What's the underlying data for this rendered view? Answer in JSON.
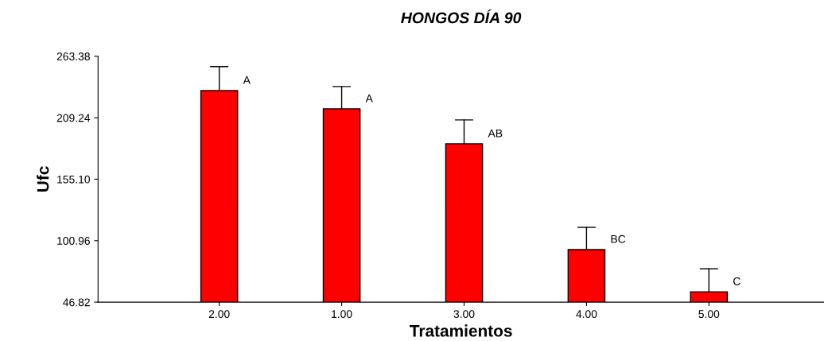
{
  "chart_data": {
    "type": "bar",
    "title": "HONGOS DÍA 90",
    "xlabel": "Tratamientos",
    "ylabel": "Ufc",
    "categories": [
      "2.00",
      "1.00",
      "3.00",
      "4.00",
      "5.00"
    ],
    "values": [
      233.2,
      217.1,
      186.3,
      93.1,
      55.9
    ],
    "errors": [
      [
        233.2,
        254.3
      ],
      [
        217.1,
        236.7
      ],
      [
        186.3,
        207.3
      ],
      [
        93.1,
        112.7
      ],
      [
        55.9,
        76.2
      ]
    ],
    "color": "#ff0000",
    "ylim": [
      46.82,
      263.38
    ],
    "yticks": [
      {
        "value": 46.82,
        "label": "46.82"
      },
      {
        "value": 100.96,
        "label": "100.96"
      },
      {
        "value": 155.1,
        "label": "155.10"
      },
      {
        "value": 209.24,
        "label": "209.24"
      },
      {
        "value": 263.38,
        "label": "263.38"
      }
    ],
    "annotations": [
      {
        "text": "A",
        "x": "2.00",
        "y": 233.2
      },
      {
        "text": "A",
        "x": "1.00",
        "y": 217.1
      },
      {
        "text": "AB",
        "x": "3.00",
        "y": 186.3
      },
      {
        "text": "BC",
        "x": "4.00",
        "y": 93.1
      },
      {
        "text": "C",
        "x": "5.00",
        "y": 55.9
      }
    ],
    "grid": false,
    "legend": false
  }
}
